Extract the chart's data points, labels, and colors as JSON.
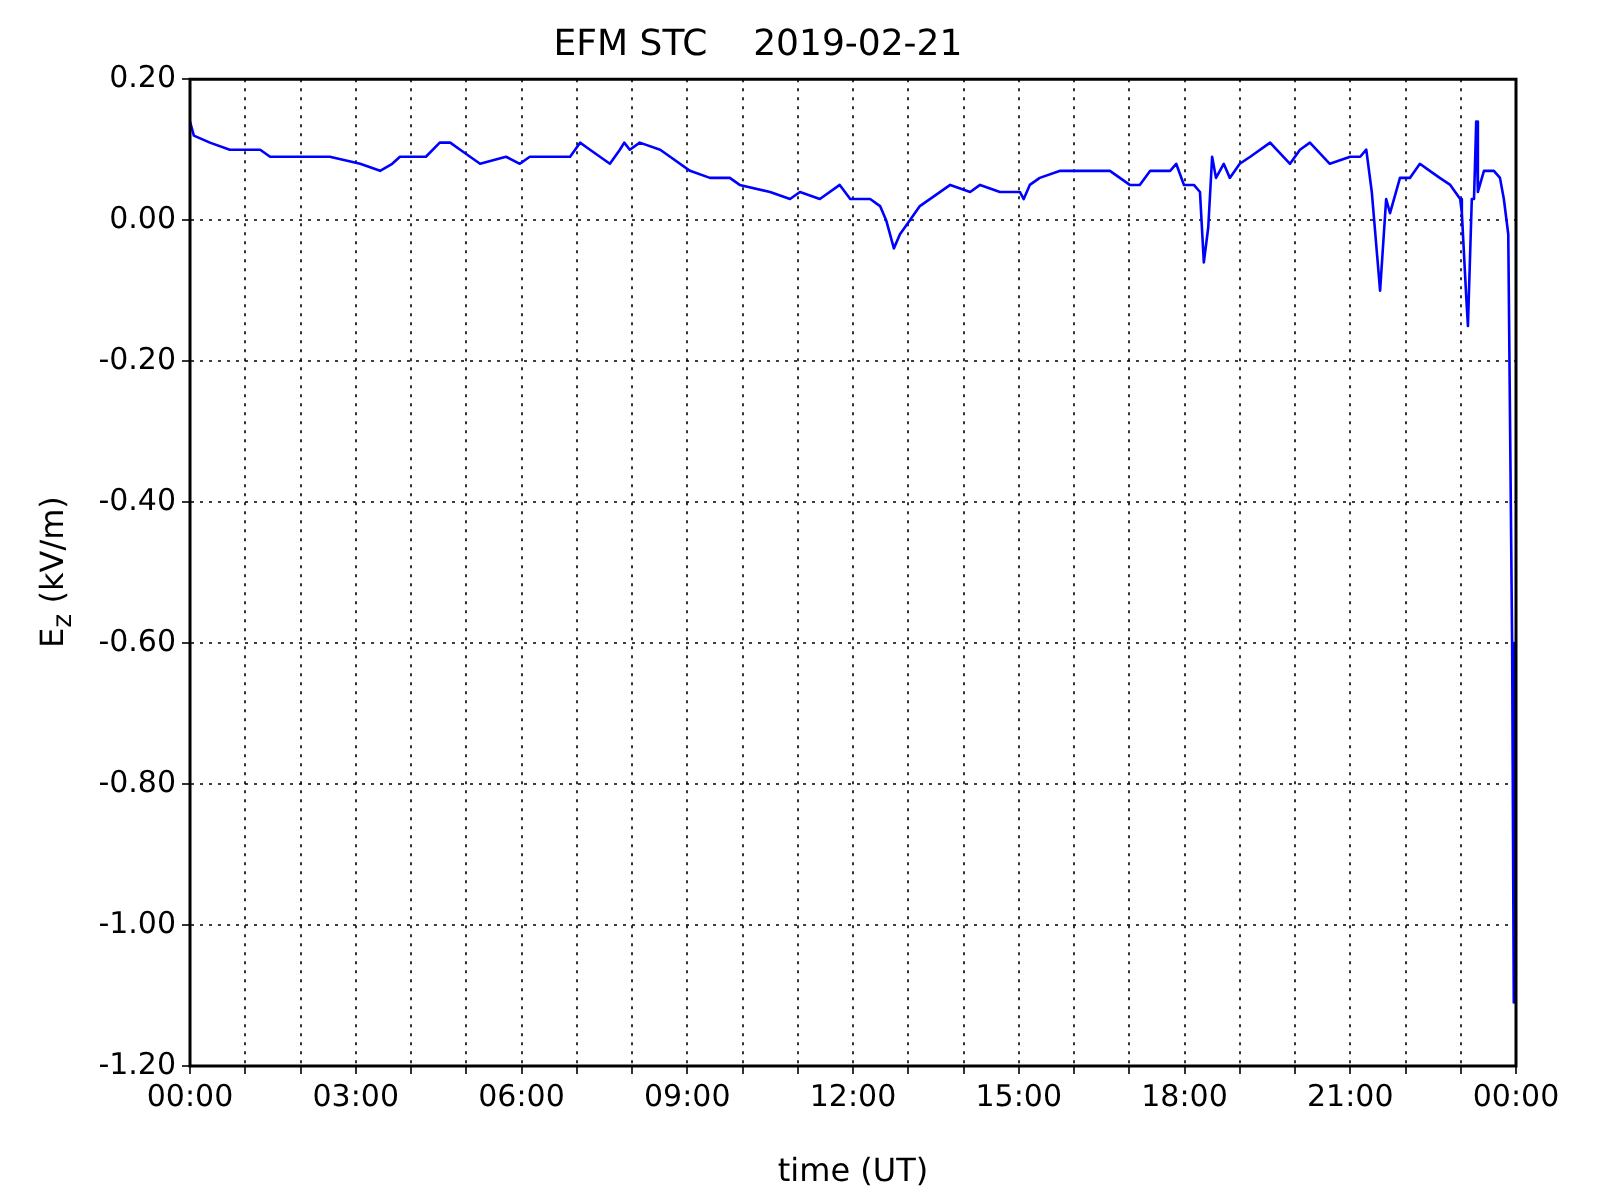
{
  "chart_data": {
    "type": "line",
    "title": "EFM STC    2019-02-21",
    "xlabel": "time (UT)",
    "ylabel": "E$_{z}$ (kV/m)",
    "xlim": [
      0,
      24
    ],
    "ylim": [
      -1.2,
      0.2
    ],
    "xticks": [
      {
        "value": 0,
        "label": "00:00"
      },
      {
        "value": 1,
        "label": null
      },
      {
        "value": 2,
        "label": null
      },
      {
        "value": 3,
        "label": "03:00"
      },
      {
        "value": 4,
        "label": null
      },
      {
        "value": 5,
        "label": null
      },
      {
        "value": 6,
        "label": "06:00"
      },
      {
        "value": 7,
        "label": null
      },
      {
        "value": 8,
        "label": null
      },
      {
        "value": 9,
        "label": "09:00"
      },
      {
        "value": 10,
        "label": null
      },
      {
        "value": 11,
        "label": null
      },
      {
        "value": 12,
        "label": "12:00"
      },
      {
        "value": 13,
        "label": null
      },
      {
        "value": 14,
        "label": null
      },
      {
        "value": 15,
        "label": "15:00"
      },
      {
        "value": 16,
        "label": null
      },
      {
        "value": 17,
        "label": null
      },
      {
        "value": 18,
        "label": "18:00"
      },
      {
        "value": 19,
        "label": null
      },
      {
        "value": 20,
        "label": null
      },
      {
        "value": 21,
        "label": "21:00"
      },
      {
        "value": 22,
        "label": null
      },
      {
        "value": 23,
        "label": null
      },
      {
        "value": 24,
        "label": "00:00"
      }
    ],
    "yticks": [
      {
        "value": -1.2,
        "label": "-1.20"
      },
      {
        "value": -1.0,
        "label": "-1.00"
      },
      {
        "value": -0.8,
        "label": "-0.80"
      },
      {
        "value": -0.6,
        "label": "-0.60"
      },
      {
        "value": -0.4,
        "label": "-0.40"
      },
      {
        "value": -0.2,
        "label": "-0.20"
      },
      {
        "value": 0,
        "label": "0.00"
      },
      {
        "value": 0.2,
        "label": "0.20"
      }
    ],
    "grid": true,
    "legend": false,
    "marker": "none",
    "line_style": "solid",
    "series": [
      {
        "color": "#0000ff",
        "x": [
          0,
          0.07,
          0.36,
          0.72,
          1.01,
          1.27,
          1.45,
          1.99,
          2.53,
          3.08,
          3.44,
          3.66,
          3.8,
          3.98,
          4.27,
          4.52,
          4.71,
          4.89,
          5.25,
          5.72,
          5.97,
          6.15,
          6.33,
          6.88,
          7.06,
          7.24,
          7.42,
          7.6,
          7.78,
          7.86,
          7.96,
          8.14,
          8.51,
          8.69,
          9.05,
          9.41,
          9.77,
          9.95,
          10.5,
          10.86,
          11.04,
          11.4,
          11.76,
          11.95,
          12.02,
          12.31,
          12.49,
          12.6,
          12.74,
          12.85,
          13.03,
          13.21,
          13.76,
          14.12,
          14.3,
          14.66,
          15.02,
          15.09,
          15.2,
          15.38,
          15.75,
          16.11,
          16.65,
          17.01,
          17.19,
          17.38,
          17.74,
          17.85,
          17.99,
          18.17,
          18.28,
          18.35,
          18.43,
          18.5,
          18.57,
          18.71,
          18.82,
          19.0,
          19.19,
          19.55,
          19.91,
          20.09,
          20.27,
          20.63,
          21.0,
          21.18,
          21.29,
          21.39,
          21.54,
          21.65,
          21.72,
          21.9,
          22.08,
          22.26,
          22.44,
          22.62,
          22.81,
          22.99,
          23.02,
          23.1,
          23.13,
          23.2,
          23.24,
          23.28,
          23.31,
          23.42,
          23.6,
          23.71,
          23.78,
          23.86,
          23.93,
          23.96
        ],
        "values": [
          0.14,
          0.12,
          0.11,
          0.1,
          0.1,
          0.1,
          0.09,
          0.09,
          0.09,
          0.08,
          0.07,
          0.08,
          0.09,
          0.09,
          0.09,
          0.11,
          0.11,
          0.1,
          0.08,
          0.09,
          0.08,
          0.09,
          0.09,
          0.09,
          0.11,
          0.1,
          0.09,
          0.08,
          0.1,
          0.11,
          0.1,
          0.11,
          0.1,
          0.09,
          0.07,
          0.06,
          0.06,
          0.05,
          0.04,
          0.03,
          0.04,
          0.03,
          0.05,
          0.03,
          0.03,
          0.03,
          0.02,
          0.0,
          -0.04,
          -0.02,
          0.0,
          0.02,
          0.05,
          0.04,
          0.05,
          0.04,
          0.04,
          0.03,
          0.05,
          0.06,
          0.07,
          0.07,
          0.07,
          0.05,
          0.05,
          0.07,
          0.07,
          0.08,
          0.05,
          0.05,
          0.04,
          -0.06,
          -0.01,
          0.09,
          0.06,
          0.08,
          0.06,
          0.08,
          0.09,
          0.11,
          0.08,
          0.1,
          0.11,
          0.08,
          0.09,
          0.09,
          0.1,
          0.04,
          -0.1,
          0.03,
          0.01,
          0.06,
          0.06,
          0.08,
          0.07,
          0.06,
          0.05,
          0.03,
          0.01,
          -0.11,
          -0.15,
          0.03,
          0.03,
          0.14,
          0.04,
          0.07,
          0.07,
          0.06,
          0.03,
          -0.02,
          -0.6,
          -1.11
        ]
      }
    ]
  }
}
